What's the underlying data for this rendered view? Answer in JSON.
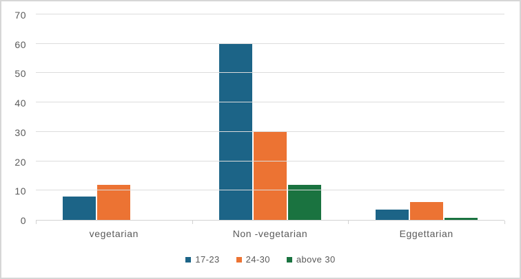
{
  "chart_data": {
    "type": "bar",
    "title": "",
    "xlabel": "",
    "ylabel": "",
    "categories": [
      "vegetarian",
      "Non -vegetarian",
      "Eggettarian"
    ],
    "series": [
      {
        "name": "17-23",
        "color": "#1c6487",
        "values": [
          8,
          60,
          3.5
        ]
      },
      {
        "name": "24-30",
        "color": "#ec7333",
        "values": [
          12,
          30,
          6
        ]
      },
      {
        "name": "above 30",
        "color": "#1a7340",
        "values": [
          0,
          12,
          0.7
        ]
      }
    ],
    "ylim": [
      0,
      70
    ],
    "yticks": [
      0,
      10,
      20,
      30,
      40,
      50,
      60,
      70
    ],
    "grid": true,
    "legend_position": "bottom"
  },
  "colors": {
    "bar_blue": "#1c6487",
    "bar_orange": "#ec7333",
    "bar_green": "#1a7340",
    "gridline": "#dcdcdc",
    "axis_line": "#d2d2d2",
    "text_gray": "#595959",
    "figure_border": "#d6d6d6",
    "background": "#ffffff"
  }
}
